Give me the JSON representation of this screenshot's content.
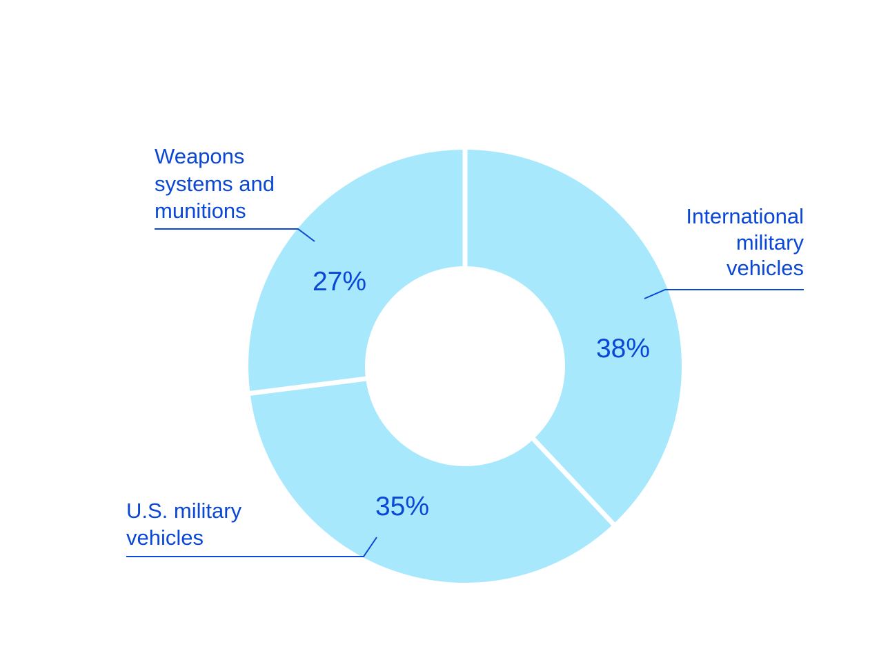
{
  "colors": {
    "slice_fill": "#a7e8fd",
    "text": "#0a47d6",
    "separator": "#ffffff",
    "background": "#ffffff"
  },
  "chart_data": {
    "type": "pie",
    "variant": "donut",
    "title": "",
    "slices": [
      {
        "label_lines": [
          "International",
          "military",
          "vehicles"
        ],
        "value": 38,
        "value_label": "38%"
      },
      {
        "label_lines": [
          "U.S. military",
          "vehicles"
        ],
        "value": 35,
        "value_label": "35%"
      },
      {
        "label_lines": [
          "Weapons",
          "systems and",
          "munitions"
        ],
        "value": 27,
        "value_label": "27%"
      }
    ],
    "start_angle": "12 o'clock",
    "direction": "clockwise",
    "legend": "none",
    "labels": "outside with leader lines"
  }
}
